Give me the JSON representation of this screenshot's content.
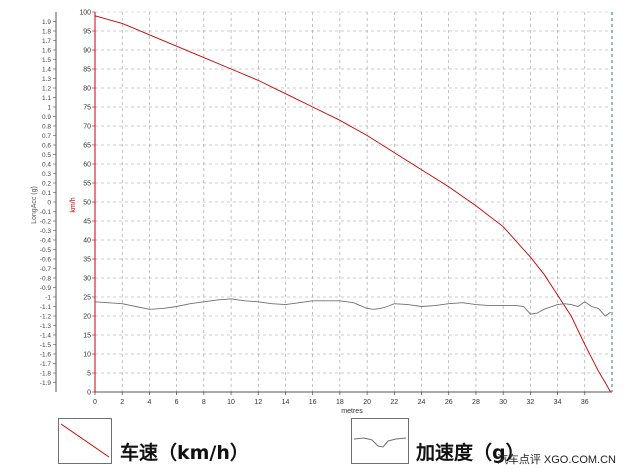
{
  "chart_data": {
    "type": "line",
    "xlabel": "metres",
    "left_axis_label": "LongAcc (g)",
    "right_axis_label": "km/h",
    "x_ticks": [
      "0",
      "2",
      "4",
      "6",
      "8",
      "10",
      "12",
      "14",
      "16",
      "18",
      "20",
      "22",
      "24",
      "26",
      "28",
      "30",
      "32",
      "34",
      "36"
    ],
    "xlim": [
      0,
      38
    ],
    "left_ylim": [
      -2,
      2
    ],
    "left_ticks": [
      "1.9",
      "1.8",
      "1.7",
      "1.6",
      "1.5",
      "1.4",
      "1.3",
      "1.2",
      "1.1",
      "1",
      "0.9",
      "0.8",
      "0.7",
      "0.6",
      "0.5",
      "0.4",
      "0.3",
      "0.2",
      "0.1",
      "0",
      "-0.1",
      "-0.2",
      "-0.3",
      "-0.4",
      "-0.5",
      "-0.6",
      "-0.7",
      "-0.8",
      "-0.9",
      "-1",
      "-1.1",
      "-1.2",
      "-1.3",
      "-1.4",
      "-1.5",
      "-1.6",
      "-1.7",
      "-1.8",
      "-1.9"
    ],
    "speed_ylim": [
      0,
      100
    ],
    "speed_ticks": [
      "100",
      "95",
      "90",
      "85",
      "80",
      "75",
      "70",
      "65",
      "60",
      "55",
      "50",
      "45",
      "40",
      "35",
      "30",
      "25",
      "20",
      "15",
      "10",
      "5",
      "0"
    ],
    "grid": true,
    "series": [
      {
        "name": "车速（km/h）",
        "axis": "right",
        "color": "#cc0000",
        "x": [
          0,
          2,
          4,
          6,
          8,
          10,
          12,
          14,
          16,
          18,
          20,
          22,
          24,
          26,
          28,
          30,
          32,
          33,
          34,
          35,
          36,
          36.5,
          37,
          37.5,
          37.9
        ],
        "y": [
          99,
          97,
          94,
          91,
          88,
          85,
          82,
          78.5,
          75,
          71.5,
          67.5,
          63,
          58.5,
          54,
          49,
          43.5,
          35.5,
          31,
          25.5,
          20,
          12.5,
          9,
          5.5,
          2.5,
          0
        ]
      },
      {
        "name": "加速度（g）",
        "axis": "left",
        "color": "#707070",
        "x": [
          0,
          2,
          3,
          4,
          5,
          6,
          7,
          8,
          9,
          10,
          11,
          12,
          13,
          14,
          15,
          16,
          17,
          18,
          19,
          20,
          20.5,
          21,
          21.5,
          22,
          23,
          24,
          25,
          26,
          27,
          28,
          29,
          30,
          31,
          31.5,
          32,
          32.5,
          33,
          34,
          34.5,
          35,
          35.5,
          36,
          36.5,
          37,
          37.5,
          37.9
        ],
        "y": [
          -1.05,
          -1.07,
          -1.1,
          -1.13,
          -1.12,
          -1.1,
          -1.07,
          -1.05,
          -1.03,
          -1.02,
          -1.04,
          -1.05,
          -1.07,
          -1.08,
          -1.06,
          -1.04,
          -1.04,
          -1.04,
          -1.06,
          -1.12,
          -1.13,
          -1.12,
          -1.1,
          -1.07,
          -1.08,
          -1.1,
          -1.09,
          -1.07,
          -1.06,
          -1.08,
          -1.09,
          -1.09,
          -1.09,
          -1.1,
          -1.18,
          -1.17,
          -1.13,
          -1.08,
          -1.07,
          -1.08,
          -1.1,
          -1.05,
          -1.1,
          -1.12,
          -1.2,
          -1.16
        ]
      }
    ]
  },
  "legend": {
    "speed_label": "车速（km/h）",
    "acc_label": "加速度（g）"
  },
  "watermark": "汽车点评 XGO.COM.CN",
  "colors": {
    "speed": "#cc0000",
    "acc": "#707070",
    "grid": "#9a9a9a"
  }
}
